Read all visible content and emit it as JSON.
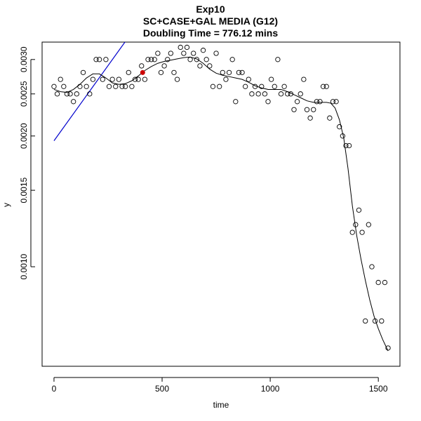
{
  "chart_data": {
    "type": "scatter",
    "title": "Exp10",
    "subtitle": "SC+CASE+GAL MEDIA (G12)",
    "subtitle2": "Doubling Time = 776.12 mins",
    "xlabel": "time",
    "ylabel": "y",
    "y_scale": "log",
    "xlim": [
      -55,
      1600
    ],
    "ylim": [
      0.00059,
      0.00329
    ],
    "x_ticks": [
      0,
      500,
      1000,
      1500
    ],
    "x_tick_labels": [
      "0",
      "500",
      "1000",
      "1500"
    ],
    "y_ticks": [
      0.001,
      0.0015,
      0.002,
      0.0025,
      0.003
    ],
    "y_tick_labels": [
      "0.0010",
      "0.0015",
      "0.0020",
      "0.0025",
      "0.0030"
    ],
    "grid": false,
    "points": {
      "x": [
        0,
        15,
        30,
        45,
        60,
        75,
        90,
        105,
        120,
        135,
        150,
        165,
        180,
        195,
        210,
        225,
        240,
        255,
        270,
        285,
        300,
        315,
        330,
        345,
        360,
        375,
        390,
        405,
        420,
        435,
        450,
        465,
        480,
        495,
        510,
        525,
        540,
        555,
        570,
        585,
        600,
        615,
        630,
        645,
        660,
        675,
        690,
        705,
        720,
        735,
        750,
        765,
        780,
        795,
        810,
        825,
        840,
        855,
        870,
        885,
        900,
        915,
        930,
        945,
        960,
        975,
        990,
        1005,
        1020,
        1035,
        1050,
        1065,
        1080,
        1095,
        1110,
        1125,
        1140,
        1155,
        1170,
        1185,
        1200,
        1215,
        1230,
        1245,
        1260,
        1275,
        1290,
        1305,
        1320,
        1335,
        1350,
        1365,
        1380,
        1395,
        1410,
        1425,
        1440,
        1455,
        1470,
        1485,
        1500,
        1515,
        1530,
        1545
      ],
      "y": [
        0.0026,
        0.0025,
        0.0027,
        0.0026,
        0.0025,
        0.0025,
        0.0024,
        0.0025,
        0.0026,
        0.0028,
        0.0026,
        0.0025,
        0.0027,
        0.003,
        0.003,
        0.0027,
        0.003,
        0.0026,
        0.0027,
        0.0026,
        0.0027,
        0.0026,
        0.0026,
        0.0028,
        0.0026,
        0.0027,
        0.0027,
        0.0029,
        0.0027,
        0.003,
        0.003,
        0.003,
        0.0031,
        0.0028,
        0.0029,
        0.003,
        0.0031,
        0.0028,
        0.0027,
        0.0032,
        0.0031,
        0.0032,
        0.003,
        0.0031,
        0.003,
        0.0029,
        0.00315,
        0.003,
        0.0029,
        0.0026,
        0.0031,
        0.0026,
        0.0028,
        0.0027,
        0.0028,
        0.003,
        0.0024,
        0.0028,
        0.0028,
        0.0026,
        0.0027,
        0.0025,
        0.0026,
        0.0025,
        0.0026,
        0.0025,
        0.0024,
        0.0027,
        0.0026,
        0.003,
        0.0025,
        0.0026,
        0.0025,
        0.0025,
        0.0023,
        0.0024,
        0.0025,
        0.0027,
        0.0023,
        0.0022,
        0.0023,
        0.0024,
        0.0024,
        0.0026,
        0.0026,
        0.0022,
        0.0024,
        0.0024,
        0.0021,
        0.002,
        0.0019,
        0.0019,
        0.0012,
        0.00125,
        0.00135,
        0.0012,
        0.00075,
        0.00125,
        0.001,
        0.00075,
        0.00092,
        0.00075,
        0.00092,
        0.00065
      ]
    },
    "smooth_curve": {
      "x": [
        0,
        30,
        60,
        90,
        120,
        150,
        180,
        210,
        240,
        270,
        300,
        330,
        360,
        390,
        420,
        450,
        480,
        510,
        540,
        570,
        600,
        630,
        660,
        690,
        720,
        750,
        780,
        810,
        840,
        870,
        900,
        930,
        960,
        990,
        1020,
        1050,
        1080,
        1110,
        1140,
        1170,
        1200,
        1230,
        1260,
        1280,
        1300,
        1320,
        1340,
        1360,
        1380,
        1400,
        1420,
        1440,
        1460,
        1480,
        1500,
        1520,
        1545
      ],
      "y": [
        0.00256,
        0.00253,
        0.00252,
        0.00256,
        0.00263,
        0.00272,
        0.00278,
        0.00278,
        0.00272,
        0.00265,
        0.00263,
        0.00264,
        0.00268,
        0.00275,
        0.00283,
        0.00289,
        0.00294,
        0.00297,
        0.00299,
        0.00301,
        0.00303,
        0.00304,
        0.00301,
        0.00294,
        0.00285,
        0.00279,
        0.00276,
        0.00274,
        0.00272,
        0.0027,
        0.00266,
        0.00261,
        0.00258,
        0.00256,
        0.00256,
        0.00256,
        0.00253,
        0.00249,
        0.00245,
        0.00241,
        0.00239,
        0.00239,
        0.00239,
        0.00238,
        0.00232,
        0.00218,
        0.00198,
        0.00168,
        0.00138,
        0.00118,
        0.00104,
        0.00093,
        0.00084,
        0.00077,
        0.00072,
        0.00068,
        0.00064
      ]
    },
    "fit_line": {
      "x": [
        0,
        330
      ],
      "y": [
        0.00195,
        0.0033
      ]
    },
    "highlight_point": {
      "x": 410,
      "y": 0.0028
    },
    "colors": {
      "fit_line": "#0000cc",
      "highlight": "#cc0000",
      "points": "#000000",
      "smooth": "#000000"
    }
  }
}
